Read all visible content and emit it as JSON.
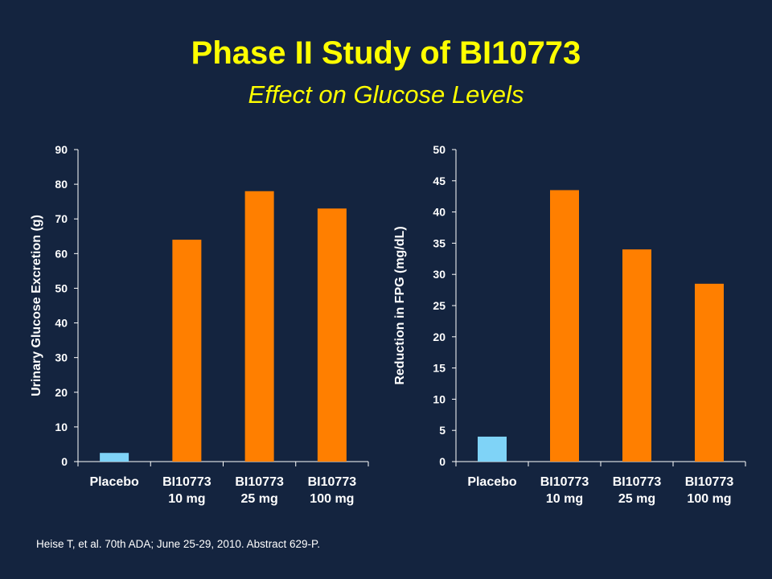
{
  "header": {
    "title": "Phase II Study of BI10773",
    "subtitle": "Effect on Glucose Levels"
  },
  "footnote": "Heise T, et al. 70th ADA; June 25-29, 2010. Abstract 629-P.",
  "colors": {
    "background": "#14243f",
    "title": "#ffff00",
    "placebo": "#7fd3f7",
    "drug": "#ff7f00",
    "axis": "#ffffff"
  },
  "chart_data": [
    {
      "type": "bar",
      "categories": [
        [
          "Placebo"
        ],
        [
          "BI10773",
          "10 mg"
        ],
        [
          "BI10773",
          "25 mg"
        ],
        [
          "BI10773",
          "100 mg"
        ]
      ],
      "values": [
        2.5,
        64,
        78,
        73
      ],
      "ylabel": "Urinary Glucose Excretion (g)",
      "xlabel": "",
      "ylim": [
        0,
        90
      ],
      "yticks": [
        0,
        10,
        20,
        30,
        40,
        50,
        60,
        70,
        80,
        90
      ],
      "grid": false
    },
    {
      "type": "bar",
      "categories": [
        [
          "Placebo"
        ],
        [
          "BI10773",
          "10 mg"
        ],
        [
          "BI10773",
          "25 mg"
        ],
        [
          "BI10773",
          "100 mg"
        ]
      ],
      "values": [
        4,
        43.5,
        34,
        28.5
      ],
      "ylabel": "Reduction in FPG (mg/dL)",
      "xlabel": "",
      "ylim": [
        0,
        50
      ],
      "yticks": [
        0,
        5,
        10,
        15,
        20,
        25,
        30,
        35,
        40,
        45,
        50
      ],
      "grid": false
    }
  ]
}
